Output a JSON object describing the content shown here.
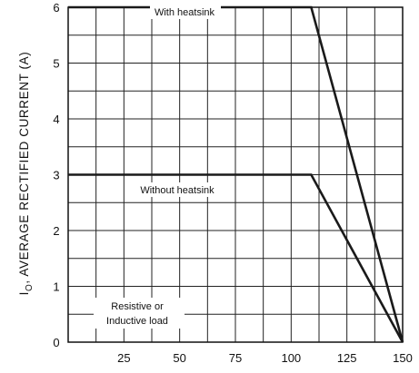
{
  "chart_data": {
    "type": "line",
    "ylabel_main": "I",
    "ylabel_sub": "O",
    "ylabel_rest": ", AVERAGE RECTIFIED CURRENT (A)",
    "xlabel": "",
    "xlim": [
      0,
      150
    ],
    "ylim": [
      0,
      6
    ],
    "x_ticks": [
      25,
      50,
      75,
      100,
      125,
      150
    ],
    "x_minor_step": 12.5,
    "y_ticks": [
      0,
      1,
      2,
      3,
      4,
      5,
      6
    ],
    "y_minor_step": 0.5,
    "grid": true,
    "series": [
      {
        "name": "With heatsink",
        "x": [
          0,
          109,
          150
        ],
        "y": [
          6,
          6,
          0
        ]
      },
      {
        "name": "Without heatsink",
        "x": [
          0,
          109,
          150
        ],
        "y": [
          3,
          3,
          0
        ]
      }
    ],
    "annotations": [
      "Resistive or",
      "Inductive load"
    ]
  }
}
